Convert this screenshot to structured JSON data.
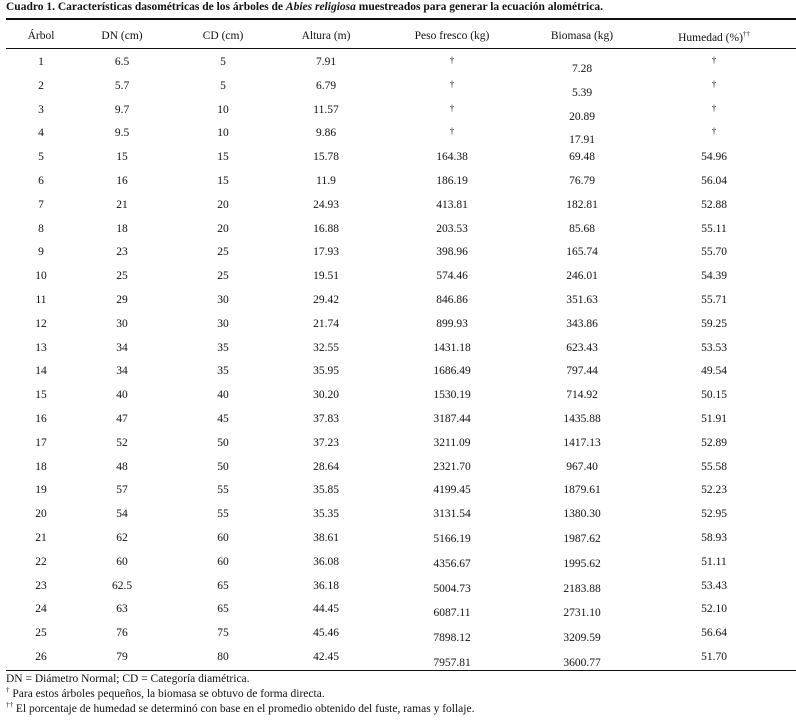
{
  "caption": {
    "prefix": "Cuadro 1. Características dasométricas de los árboles de ",
    "species": "Abies religiosa",
    "suffix": " muestreados para generar la ecuación alométrica."
  },
  "columns": [
    "Árbol",
    "DN (cm)",
    "CD (cm)",
    "Altura (m)",
    "Peso fresco (kg)",
    "Biomasa (kg)",
    "Humedad (%)"
  ],
  "humedad_mark": "††",
  "rows": [
    [
      "1",
      "6.5",
      "5",
      "7.91",
      "†",
      "7.28",
      "†"
    ],
    [
      "2",
      "5.7",
      "5",
      "6.79",
      "†",
      "5.39",
      "†"
    ],
    [
      "3",
      "9.7",
      "10",
      "11.57",
      "†",
      "20.89",
      "†"
    ],
    [
      "4",
      "9.5",
      "10",
      "9.86",
      "†",
      "17.91",
      "†"
    ],
    [
      "5",
      "15",
      "15",
      "15.78",
      "164.38",
      "69.48",
      "54.96"
    ],
    [
      "6",
      "16",
      "15",
      "11.9",
      "186.19",
      "76.79",
      "56.04"
    ],
    [
      "7",
      "21",
      "20",
      "24.93",
      "413.81",
      "182.81",
      "52.88"
    ],
    [
      "8",
      "18",
      "20",
      "16.88",
      "203.53",
      "85.68",
      "55.11"
    ],
    [
      "9",
      "23",
      "25",
      "17.93",
      "398.96",
      "165.74",
      "55.70"
    ],
    [
      "10",
      "25",
      "25",
      "19.51",
      "574.46",
      "246.01",
      "54.39"
    ],
    [
      "11",
      "29",
      "30",
      "29.42",
      "846.86",
      "351.63",
      "55.71"
    ],
    [
      "12",
      "30",
      "30",
      "21.74",
      "899.93",
      "343.86",
      "59.25"
    ],
    [
      "13",
      "34",
      "35",
      "32.55",
      "1431.18",
      "623.43",
      "53.53"
    ],
    [
      "14",
      "34",
      "35",
      "35.95",
      "1686.49",
      "797.44",
      "49.54"
    ],
    [
      "15",
      "40",
      "40",
      "30.20",
      "1530.19",
      "714.92",
      "50.15"
    ],
    [
      "16",
      "47",
      "45",
      "37.83",
      "3187.44",
      "1435.88",
      "51.91"
    ],
    [
      "17",
      "52",
      "50",
      "37.23",
      "3211.09",
      "1417.13",
      "52.89"
    ],
    [
      "18",
      "48",
      "50",
      "28.64",
      "2321.70",
      "967.40",
      "55.58"
    ],
    [
      "19",
      "57",
      "55",
      "35.85",
      "4199.45",
      "1879.61",
      "52.23"
    ],
    [
      "20",
      "54",
      "55",
      "35.35",
      "3131.54",
      "1380.30",
      "52.95"
    ],
    [
      "21",
      "62",
      "60",
      "38.61",
      "5166.19",
      "1987.62",
      "58.93"
    ],
    [
      "22",
      "60",
      "60",
      "36.08",
      "4356.67",
      "1995.62",
      "51.11"
    ],
    [
      "23",
      "62.5",
      "65",
      "36.18",
      "5004.73",
      "2183.88",
      "53.43"
    ],
    [
      "24",
      "63",
      "65",
      "44.45",
      "6087.11",
      "2731.10",
      "52.10"
    ],
    [
      "25",
      "76",
      "75",
      "45.46",
      "7898.12",
      "3209.59",
      "56.64"
    ],
    [
      "26",
      "79",
      "80",
      "42.45",
      "7957.81",
      "3600.77",
      "51.70"
    ]
  ],
  "footnotes": {
    "abbrev": "DN = Diámetro Normal; CD = Categoría diamétrica.",
    "note1_mark": "†",
    "note1": " Para estos árboles pequeños, la biomasa se obtuvo de forma directa.",
    "note2_mark": "††",
    "note2": " El porcentaje de humedad se determinó con base en el promedio obtenido del fuste, ramas y follaje."
  }
}
